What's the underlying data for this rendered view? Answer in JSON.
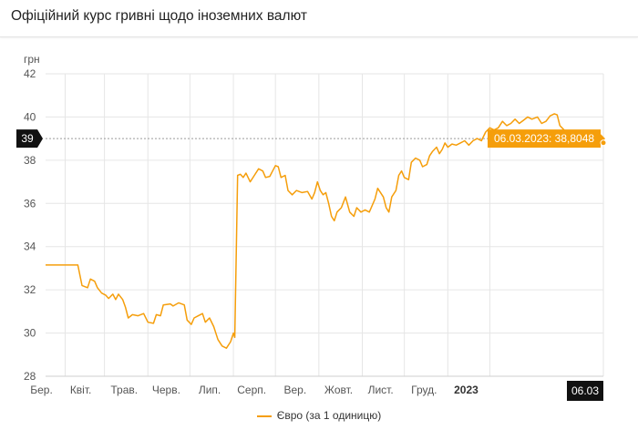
{
  "header": {
    "title": "Офіційний курс гривні щодо іноземних валют"
  },
  "chart_data": {
    "type": "line",
    "ylabel": "грн",
    "ylim": [
      28,
      42
    ],
    "yticks": [
      28,
      30,
      32,
      34,
      36,
      38,
      40,
      42
    ],
    "grid": true,
    "x_range": [
      "2022-02-01",
      "2023-03-06"
    ],
    "xticks": [
      {
        "date": "2022-02-15",
        "label": "Бер.",
        "bold": false
      },
      {
        "date": "2022-03-15",
        "label": "Квіт.",
        "bold": false
      },
      {
        "date": "2022-04-15",
        "label": "Трав.",
        "bold": false
      },
      {
        "date": "2022-05-15",
        "label": "Черв.",
        "bold": false
      },
      {
        "date": "2022-06-15",
        "label": "Лип.",
        "bold": false
      },
      {
        "date": "2022-07-15",
        "label": "Серп.",
        "bold": false
      },
      {
        "date": "2022-08-15",
        "label": "Вер.",
        "bold": false
      },
      {
        "date": "2022-09-15",
        "label": "Жовт.",
        "bold": false
      },
      {
        "date": "2022-10-15",
        "label": "Лист.",
        "bold": false
      },
      {
        "date": "2022-11-15",
        "label": "Груд.",
        "bold": false
      },
      {
        "date": "2022-12-15",
        "label": "2023",
        "bold": true
      }
    ],
    "crosshair": {
      "y_label": "39",
      "x_label": "06.03"
    },
    "tooltip": {
      "text": "06.03.2023: 38,8048",
      "date": "2023-03-06",
      "value": 38.8048
    },
    "legend": {
      "position": "bottom-center"
    },
    "series": [
      {
        "name": "Євро (за 1 одиницю)",
        "color": "#F59E0B",
        "points": [
          [
            "2022-02-01",
            33.15
          ],
          [
            "2022-02-24",
            33.15
          ],
          [
            "2022-02-27",
            32.2
          ],
          [
            "2022-03-03",
            32.1
          ],
          [
            "2022-03-05",
            32.5
          ],
          [
            "2022-03-08",
            32.4
          ],
          [
            "2022-03-10",
            32.1
          ],
          [
            "2022-03-13",
            31.85
          ],
          [
            "2022-03-16",
            31.75
          ],
          [
            "2022-03-18",
            31.6
          ],
          [
            "2022-03-21",
            31.8
          ],
          [
            "2022-03-23",
            31.55
          ],
          [
            "2022-03-25",
            31.8
          ],
          [
            "2022-03-28",
            31.55
          ],
          [
            "2022-03-30",
            31.2
          ],
          [
            "2022-04-01",
            30.7
          ],
          [
            "2022-04-04",
            30.85
          ],
          [
            "2022-04-08",
            30.8
          ],
          [
            "2022-04-12",
            30.9
          ],
          [
            "2022-04-15",
            30.5
          ],
          [
            "2022-04-19",
            30.45
          ],
          [
            "2022-04-21",
            30.85
          ],
          [
            "2022-04-24",
            30.8
          ],
          [
            "2022-04-26",
            31.3
          ],
          [
            "2022-05-01",
            31.35
          ],
          [
            "2022-05-03",
            31.25
          ],
          [
            "2022-05-07",
            31.4
          ],
          [
            "2022-05-11",
            31.3
          ],
          [
            "2022-05-13",
            30.6
          ],
          [
            "2022-05-16",
            30.4
          ],
          [
            "2022-05-18",
            30.7
          ],
          [
            "2022-05-21",
            30.8
          ],
          [
            "2022-05-24",
            30.9
          ],
          [
            "2022-05-26",
            30.5
          ],
          [
            "2022-05-29",
            30.7
          ],
          [
            "2022-06-01",
            30.3
          ],
          [
            "2022-06-04",
            29.7
          ],
          [
            "2022-06-07",
            29.4
          ],
          [
            "2022-06-10",
            29.3
          ],
          [
            "2022-06-13",
            29.6
          ],
          [
            "2022-06-15",
            30.0
          ],
          [
            "2022-06-16",
            29.8
          ],
          [
            "2022-06-18",
            37.3
          ],
          [
            "2022-06-20",
            37.35
          ],
          [
            "2022-06-22",
            37.2
          ],
          [
            "2022-06-24",
            37.4
          ],
          [
            "2022-06-27",
            37.0
          ],
          [
            "2022-06-30",
            37.3
          ],
          [
            "2022-07-03",
            37.6
          ],
          [
            "2022-07-06",
            37.5
          ],
          [
            "2022-07-08",
            37.2
          ],
          [
            "2022-07-11",
            37.25
          ],
          [
            "2022-07-13",
            37.5
          ],
          [
            "2022-07-15",
            37.75
          ],
          [
            "2022-07-17",
            37.7
          ],
          [
            "2022-07-19",
            37.2
          ],
          [
            "2022-07-22",
            37.3
          ],
          [
            "2022-07-24",
            36.6
          ],
          [
            "2022-07-27",
            36.4
          ],
          [
            "2022-07-30",
            36.6
          ],
          [
            "2022-08-03",
            36.5
          ],
          [
            "2022-08-07",
            36.55
          ],
          [
            "2022-08-10",
            36.2
          ],
          [
            "2022-08-12",
            36.5
          ],
          [
            "2022-08-14",
            37.0
          ],
          [
            "2022-08-16",
            36.6
          ],
          [
            "2022-08-18",
            36.4
          ],
          [
            "2022-08-20",
            36.5
          ],
          [
            "2022-08-22",
            36.0
          ],
          [
            "2022-08-24",
            35.4
          ],
          [
            "2022-08-26",
            35.2
          ],
          [
            "2022-08-28",
            35.6
          ],
          [
            "2022-08-31",
            35.8
          ],
          [
            "2022-09-03",
            36.3
          ],
          [
            "2022-09-06",
            35.6
          ],
          [
            "2022-09-09",
            35.4
          ],
          [
            "2022-09-11",
            35.8
          ],
          [
            "2022-09-14",
            35.6
          ],
          [
            "2022-09-17",
            35.7
          ],
          [
            "2022-09-20",
            35.6
          ],
          [
            "2022-09-24",
            36.2
          ],
          [
            "2022-09-26",
            36.7
          ],
          [
            "2022-09-28",
            36.5
          ],
          [
            "2022-09-30",
            36.3
          ],
          [
            "2022-10-02",
            35.8
          ],
          [
            "2022-10-04",
            35.6
          ],
          [
            "2022-10-06",
            36.3
          ],
          [
            "2022-10-09",
            36.6
          ],
          [
            "2022-10-11",
            37.3
          ],
          [
            "2022-10-13",
            37.5
          ],
          [
            "2022-10-15",
            37.2
          ],
          [
            "2022-10-18",
            37.1
          ],
          [
            "2022-10-20",
            37.9
          ],
          [
            "2022-10-23",
            38.1
          ],
          [
            "2022-10-26",
            38.0
          ],
          [
            "2022-10-28",
            37.7
          ],
          [
            "2022-10-31",
            37.8
          ],
          [
            "2022-11-02",
            38.2
          ],
          [
            "2022-11-04",
            38.4
          ],
          [
            "2022-11-07",
            38.6
          ],
          [
            "2022-11-09",
            38.3
          ],
          [
            "2022-11-11",
            38.5
          ],
          [
            "2022-11-13",
            38.8
          ],
          [
            "2022-11-15",
            38.6
          ],
          [
            "2022-11-18",
            38.75
          ],
          [
            "2022-11-21",
            38.7
          ],
          [
            "2022-11-24",
            38.8
          ],
          [
            "2022-11-27",
            38.9
          ],
          [
            "2022-11-30",
            38.7
          ],
          [
            "2022-12-03",
            38.9
          ],
          [
            "2022-12-06",
            39.0
          ],
          [
            "2022-12-09",
            38.9
          ],
          [
            "2022-12-12",
            39.3
          ],
          [
            "2022-12-15",
            39.5
          ],
          [
            "2022-12-18",
            39.4
          ],
          [
            "2022-12-21",
            39.5
          ],
          [
            "2022-12-24",
            39.8
          ],
          [
            "2022-12-27",
            39.6
          ],
          [
            "2022-12-30",
            39.7
          ],
          [
            "2023-01-02",
            39.9
          ],
          [
            "2023-01-05",
            39.7
          ],
          [
            "2023-01-08",
            39.85
          ],
          [
            "2023-01-11",
            40.0
          ],
          [
            "2023-01-14",
            39.9
          ],
          [
            "2023-01-18",
            40.0
          ],
          [
            "2023-01-21",
            39.7
          ],
          [
            "2023-01-24",
            39.8
          ],
          [
            "2023-01-27",
            40.05
          ],
          [
            "2023-01-30",
            40.15
          ],
          [
            "2023-02-01",
            40.1
          ],
          [
            "2023-02-03",
            39.6
          ],
          [
            "2023-02-06",
            39.4
          ],
          [
            "2023-02-09",
            39.2
          ],
          [
            "2023-02-12",
            39.3
          ],
          [
            "2023-02-15",
            39.1
          ],
          [
            "2023-02-18",
            39.2
          ],
          [
            "2023-02-21",
            39.0
          ],
          [
            "2023-02-24",
            38.95
          ],
          [
            "2023-02-27",
            38.7
          ],
          [
            "2023-03-02",
            38.85
          ],
          [
            "2023-03-06",
            38.8048
          ]
        ]
      }
    ]
  }
}
